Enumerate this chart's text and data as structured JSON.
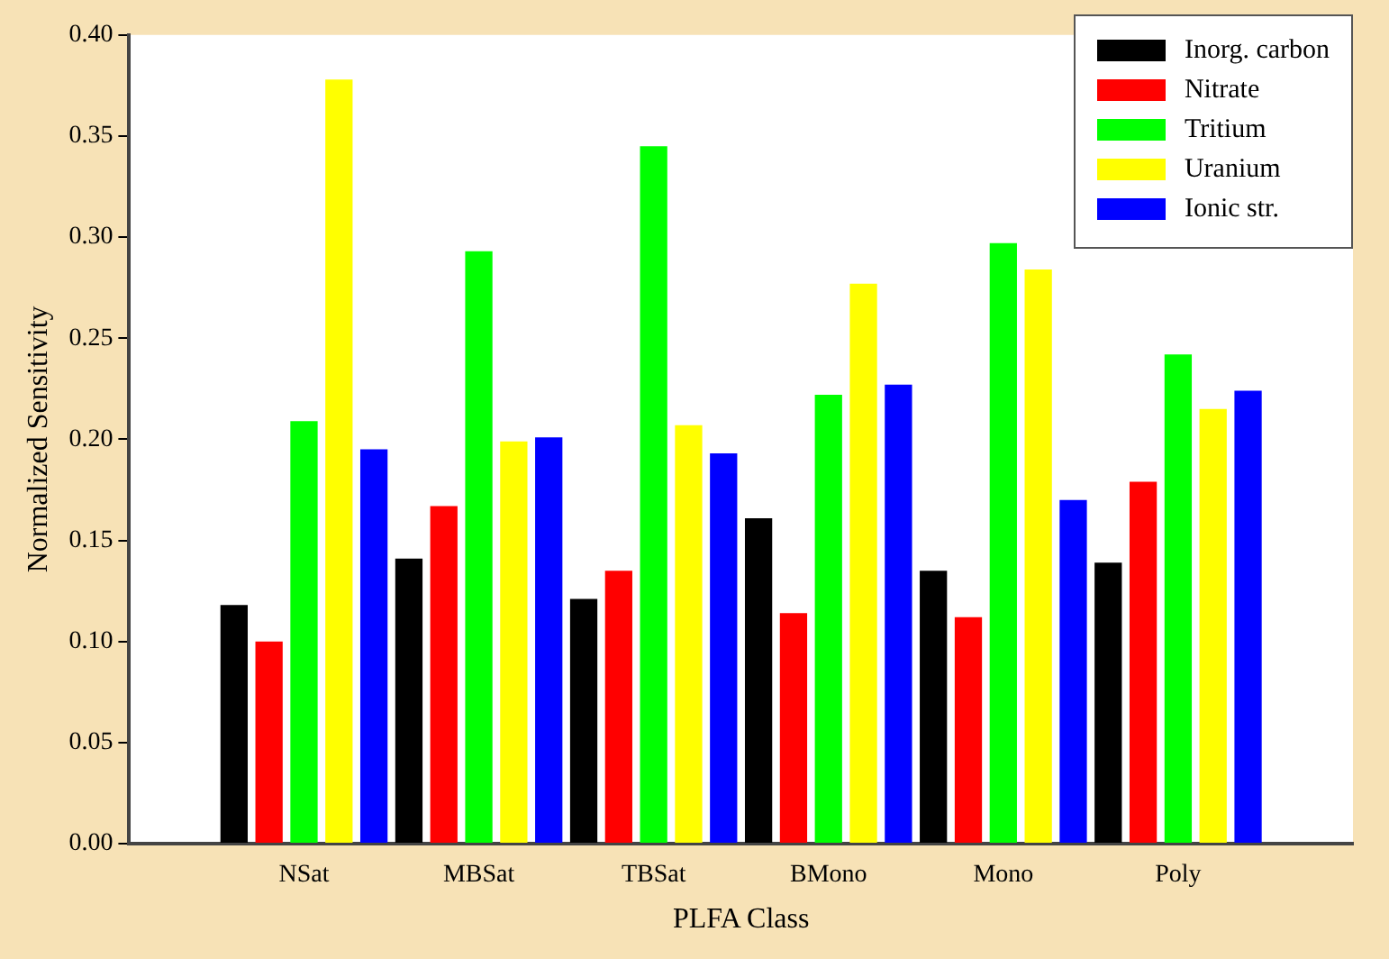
{
  "chart_data": {
    "type": "bar",
    "xlabel": "PLFA Class",
    "ylabel": "Normalized Sensitivity",
    "categories": [
      "NSat",
      "MBSat",
      "TBSat",
      "BMono",
      "Mono",
      "Poly"
    ],
    "series": [
      {
        "name": "Inorg. carbon",
        "color": "#000000",
        "values": [
          0.118,
          0.141,
          0.121,
          0.161,
          0.135,
          0.139
        ]
      },
      {
        "name": "Nitrate",
        "color": "#ff0000",
        "values": [
          0.1,
          0.167,
          0.135,
          0.114,
          0.112,
          0.179
        ]
      },
      {
        "name": "Tritium",
        "color": "#00ff00",
        "values": [
          0.209,
          0.293,
          0.345,
          0.222,
          0.297,
          0.242
        ]
      },
      {
        "name": "Uranium",
        "color": "#ffff00",
        "values": [
          0.378,
          0.199,
          0.207,
          0.277,
          0.284,
          0.215
        ]
      },
      {
        "name": "Ionic str.",
        "color": "#0000ff",
        "values": [
          0.195,
          0.201,
          0.193,
          0.227,
          0.17,
          0.224
        ]
      }
    ],
    "ylim": [
      0,
      0.4
    ],
    "yticks": [
      {
        "value": 0,
        "label": "0.00"
      },
      {
        "value": 0.05,
        "label": "0.05"
      },
      {
        "value": 0.1,
        "label": "0.10"
      },
      {
        "value": 0.15,
        "label": "0.15"
      },
      {
        "value": 0.2,
        "label": "0.20"
      },
      {
        "value": 0.25,
        "label": "0.25"
      },
      {
        "value": 0.3,
        "label": "0.30"
      },
      {
        "value": 0.35,
        "label": "0.35"
      },
      {
        "value": 0.4,
        "label": "0.40"
      }
    ],
    "grid": false,
    "legend": "top right"
  }
}
